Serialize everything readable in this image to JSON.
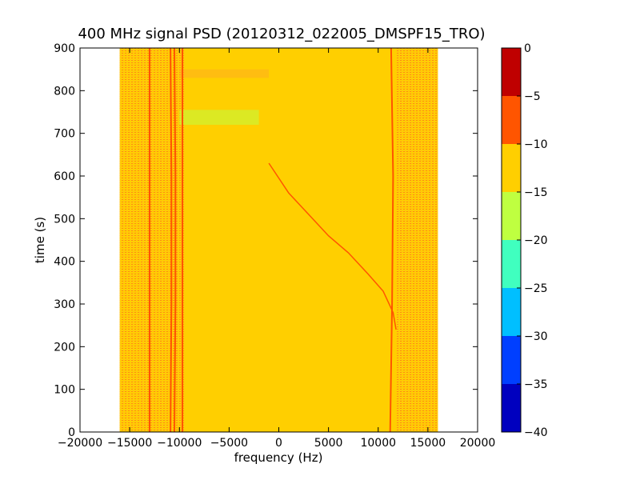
{
  "chart_data": {
    "type": "heatmap",
    "title": "400 MHz signal PSD (20120312_022005_DMSPF15_TRO)",
    "xlabel": "frequency (Hz)",
    "ylabel": "time (s)",
    "xlim": [
      -20000,
      20000
    ],
    "ylim": [
      0,
      900
    ],
    "xticks": [
      -20000,
      -15000,
      -10000,
      -5000,
      0,
      5000,
      10000,
      15000,
      20000
    ],
    "xtick_labels": [
      "−20000",
      "−15000",
      "−10000",
      "−5000",
      "0",
      "5000",
      "10000",
      "15000",
      "20000"
    ],
    "yticks": [
      0,
      100,
      200,
      300,
      400,
      500,
      600,
      700,
      800,
      900
    ],
    "ytick_labels": [
      "0",
      "100",
      "200",
      "300",
      "400",
      "500",
      "600",
      "700",
      "800",
      "900"
    ],
    "grid": false,
    "data_extent": {
      "freq_min": -16000,
      "freq_max": 16000
    },
    "dominant_level": "-15 to -10",
    "colorbar": {
      "levels": [
        -40,
        -35,
        -30,
        -25,
        -20,
        -15,
        -10,
        -5,
        0
      ],
      "tick_labels": [
        "−40",
        "−35",
        "−30",
        "−25",
        "−20",
        "−15",
        "−10",
        "−5",
        "0"
      ],
      "colors": [
        "#0000bf",
        "#003fff",
        "#00bfff",
        "#40ffbf",
        "#bfff40",
        "#ffcf00",
        "#ff5500",
        "#bf0000"
      ]
    },
    "features": [
      {
        "name": "vertical-line",
        "points": [
          [
            -10900,
            0
          ],
          [
            -10800,
            300
          ],
          [
            -10800,
            600
          ],
          [
            -10900,
            900
          ]
        ]
      },
      {
        "name": "vertical-line",
        "points": [
          [
            -10500,
            0
          ],
          [
            -10400,
            300
          ],
          [
            -10400,
            600
          ],
          [
            -10500,
            900
          ]
        ]
      },
      {
        "name": "vertical-line",
        "points": [
          [
            -13000,
            0
          ],
          [
            -13000,
            900
          ]
        ]
      },
      {
        "name": "vertical-line",
        "points": [
          [
            -9700,
            0
          ],
          [
            -9700,
            900
          ]
        ]
      },
      {
        "name": "vertical-line",
        "points": [
          [
            11200,
            0
          ],
          [
            11400,
            300
          ],
          [
            11500,
            600
          ],
          [
            11300,
            900
          ]
        ]
      },
      {
        "name": "doppler-curve",
        "points": [
          [
            -1000,
            630
          ],
          [
            1000,
            560
          ],
          [
            3000,
            510
          ],
          [
            5000,
            460
          ],
          [
            7000,
            420
          ],
          [
            9000,
            370
          ],
          [
            10500,
            330
          ],
          [
            11500,
            280
          ],
          [
            11800,
            240
          ]
        ]
      }
    ]
  }
}
